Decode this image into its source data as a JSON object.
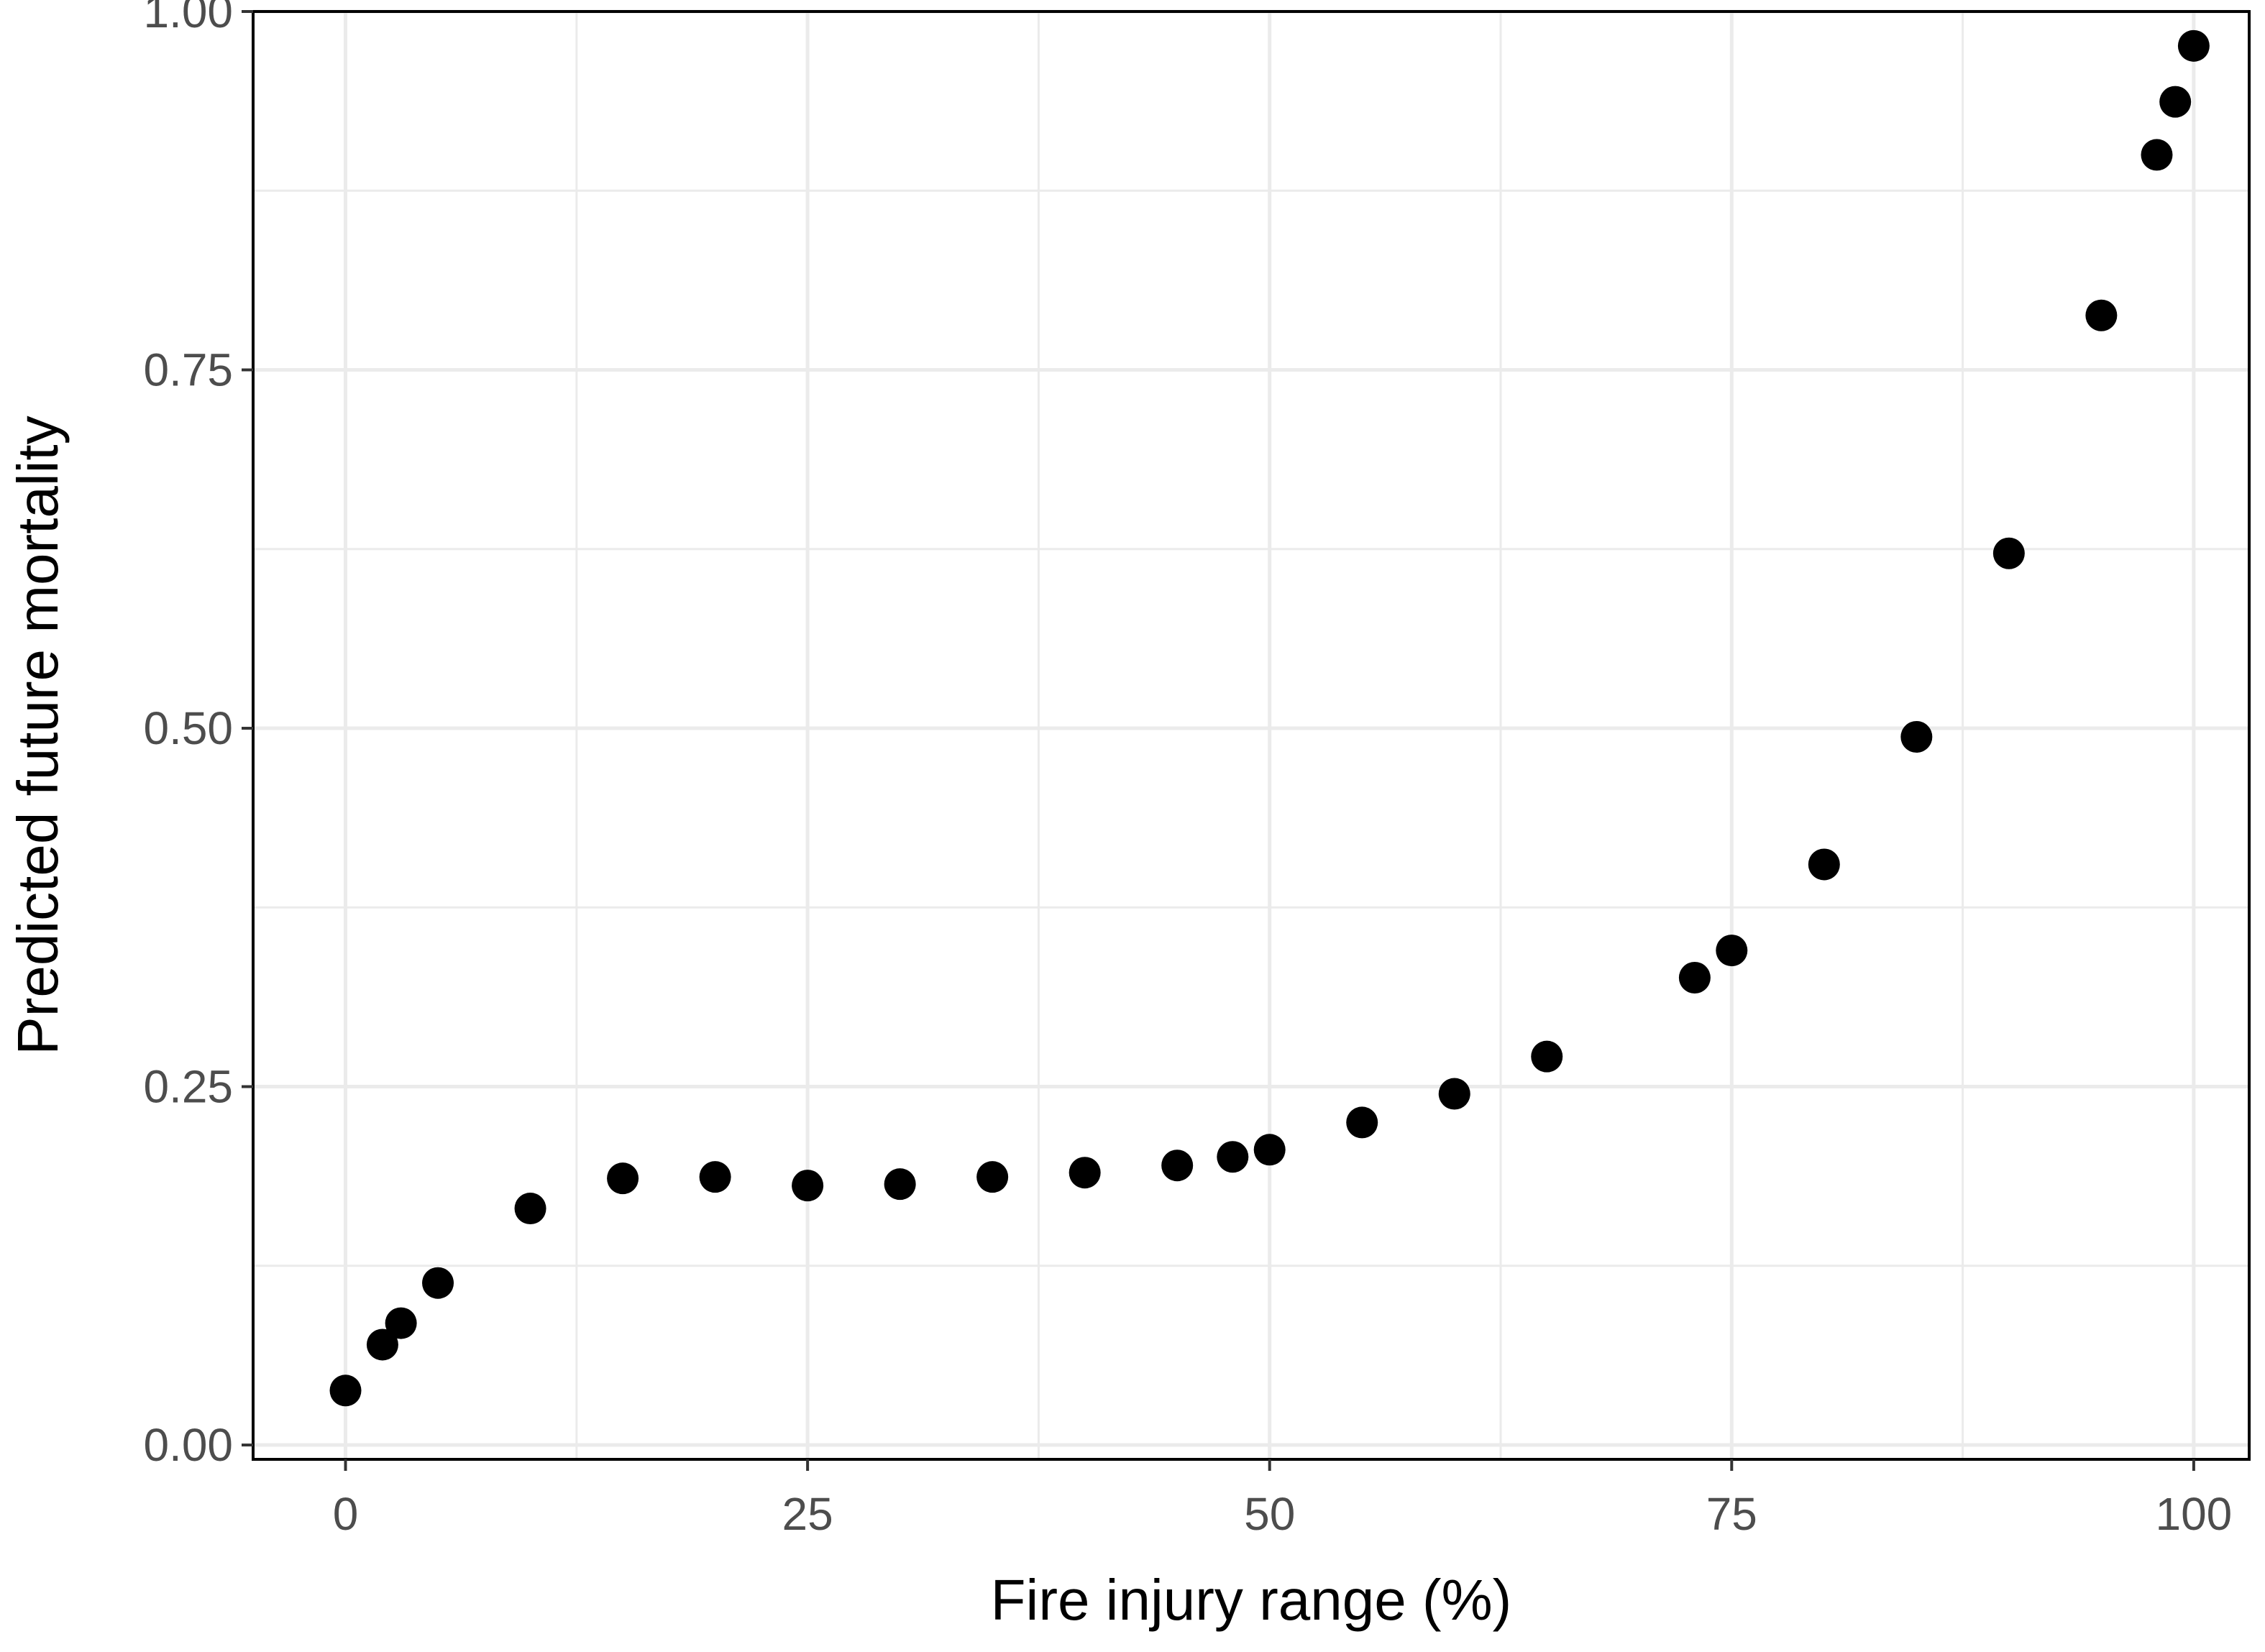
{
  "chart_data": {
    "type": "scatter",
    "title": "",
    "xlabel": "Fire injury range (%)",
    "ylabel": "Predicted future mortality",
    "xlim": [
      -5,
      103
    ],
    "ylim": [
      -0.01,
      1.0
    ],
    "x_ticks": [
      0,
      25,
      50,
      75,
      100
    ],
    "x_tick_labels": [
      "0",
      "25",
      "50",
      "75",
      "100"
    ],
    "y_ticks": [
      0,
      0.25,
      0.5,
      0.75,
      1.0
    ],
    "y_tick_labels": [
      "0.00",
      "0.25",
      "0.50",
      "0.75",
      "1.00"
    ],
    "x_minor_ticks": [
      12.5,
      37.5,
      62.5,
      87.5
    ],
    "y_minor_ticks": [
      0.125,
      0.375,
      0.625,
      0.875
    ],
    "grid": true,
    "legend": "none",
    "marker_color": "#000000",
    "grid_color": "#ebebeb",
    "points": [
      {
        "x": 0,
        "y": 0.038
      },
      {
        "x": 2,
        "y": 0.07
      },
      {
        "x": 3,
        "y": 0.085
      },
      {
        "x": 5,
        "y": 0.113
      },
      {
        "x": 10,
        "y": 0.165
      },
      {
        "x": 15,
        "y": 0.186
      },
      {
        "x": 20,
        "y": 0.187
      },
      {
        "x": 25,
        "y": 0.181
      },
      {
        "x": 30,
        "y": 0.182
      },
      {
        "x": 35,
        "y": 0.187
      },
      {
        "x": 40,
        "y": 0.19
      },
      {
        "x": 45,
        "y": 0.195
      },
      {
        "x": 48,
        "y": 0.201
      },
      {
        "x": 50,
        "y": 0.206
      },
      {
        "x": 55,
        "y": 0.225
      },
      {
        "x": 60,
        "y": 0.245
      },
      {
        "x": 65,
        "y": 0.271
      },
      {
        "x": 73,
        "y": 0.326
      },
      {
        "x": 75,
        "y": 0.345
      },
      {
        "x": 80,
        "y": 0.405
      },
      {
        "x": 85,
        "y": 0.494
      },
      {
        "x": 90,
        "y": 0.622
      },
      {
        "x": 95,
        "y": 0.788
      },
      {
        "x": 98,
        "y": 0.9
      },
      {
        "x": 99,
        "y": 0.937
      },
      {
        "x": 100,
        "y": 0.976
      }
    ]
  }
}
